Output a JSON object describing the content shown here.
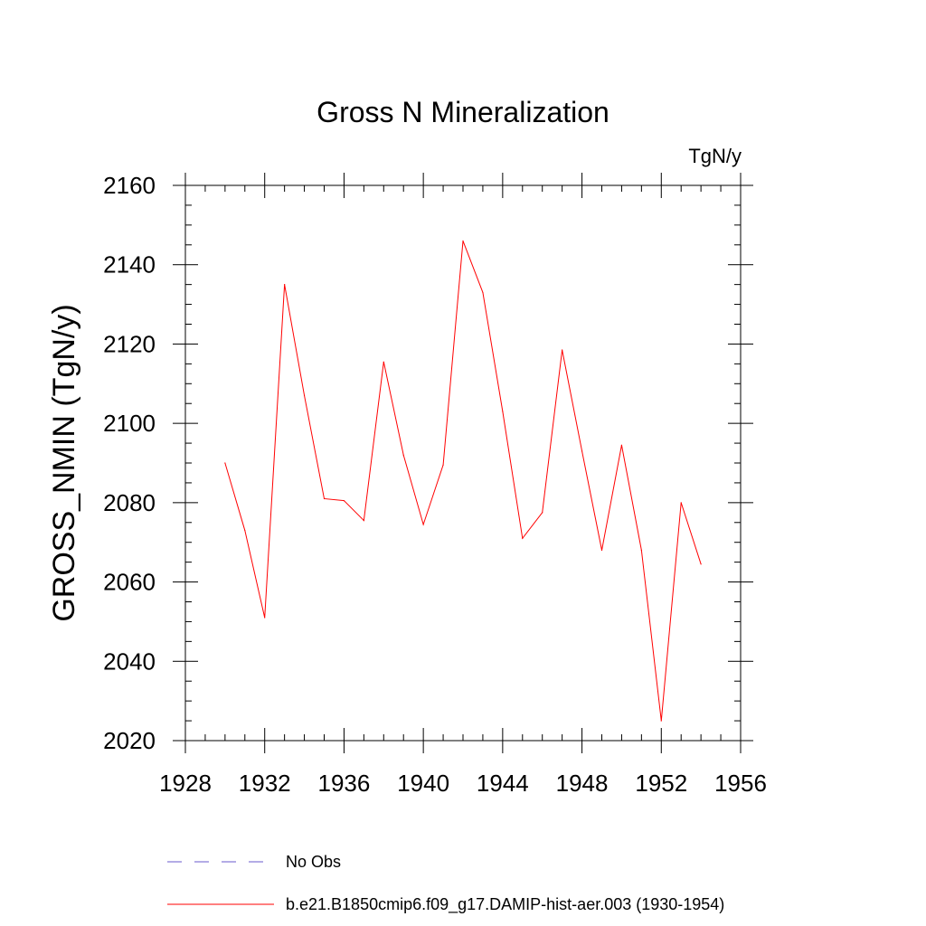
{
  "chart_data": {
    "type": "line",
    "title": "Gross N Mineralization",
    "units_label": "TgN/y",
    "xlabel": "",
    "ylabel": "GROSS_NMIN  (TgN/y)",
    "xlim": [
      1928,
      1956
    ],
    "ylim": [
      2020,
      2160
    ],
    "xticks": [
      1928,
      1932,
      1936,
      1940,
      1944,
      1948,
      1952,
      1956
    ],
    "yticks": [
      2020,
      2040,
      2060,
      2080,
      2100,
      2120,
      2140,
      2160
    ],
    "grid": false,
    "legend_position": "bottom",
    "colors": {
      "series": "#ff0000",
      "obs": "#6a5acd"
    },
    "legend": [
      {
        "label": "No Obs",
        "style": "dashed",
        "color": "#6a5acd"
      },
      {
        "label": "b.e21.B1850cmip6.f09_g17.DAMIP-hist-aer.003 (1930-1954)",
        "style": "solid",
        "color": "#ff0000"
      }
    ],
    "series": [
      {
        "name": "b.e21.B1850cmip6.f09_g17.DAMIP-hist-aer.003 (1930-1954)",
        "x": [
          1930,
          1931,
          1932,
          1933,
          1934,
          1935,
          1936,
          1937,
          1938,
          1939,
          1940,
          1941,
          1942,
          1943,
          1944,
          1945,
          1946,
          1947,
          1948,
          1949,
          1950,
          1951,
          1952,
          1953,
          1954
        ],
        "values": [
          2090,
          2073,
          2051,
          2135,
          2107,
          2081,
          2080.5,
          2075.5,
          2115.5,
          2092,
          2074.5,
          2089.5,
          2146,
          2133,
          2103,
          2071,
          2077.5,
          2118.5,
          2093,
          2068,
          2094.5,
          2068,
          2025,
          2080,
          2064.5
        ]
      }
    ]
  }
}
